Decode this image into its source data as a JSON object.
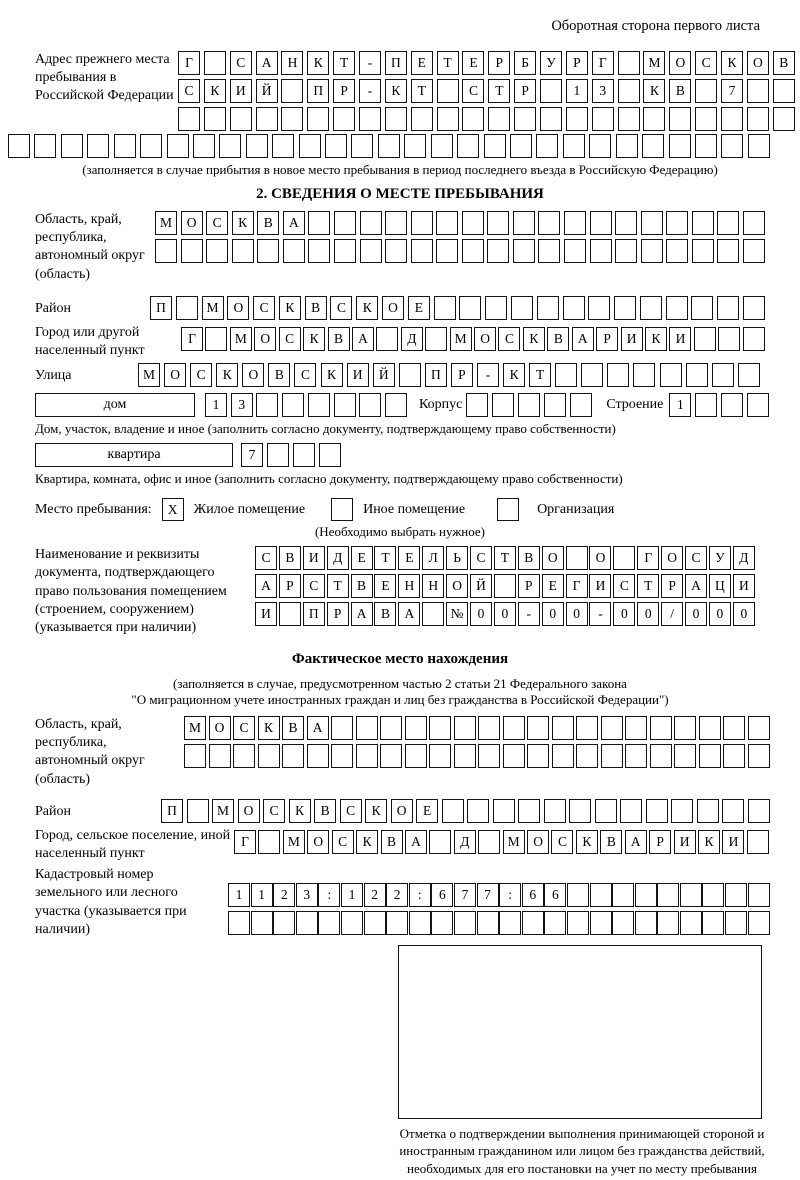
{
  "header": {
    "title": "Оборотная сторона первого листа"
  },
  "prev_address": {
    "label": "Адрес прежнего места пребывания в Российской Федерации",
    "rows": [
      "Г САНКТ-ПЕТЕРБУРГ МОСКОВ",
      "СКИЙ ПР-КТ СТР 13 КВ 7",
      ""
    ],
    "full_row": "",
    "note": "(заполняется в случае прибытия в новое место пребывания в период последнего въезда в Российскую Федерацию)"
  },
  "section2": {
    "heading": "2. СВЕДЕНИЯ О МЕСТЕ ПРЕБЫВАНИЯ",
    "region": {
      "label": "Область, край, республика, автономный округ (область)",
      "rows": [
        "МОСКВА",
        ""
      ]
    },
    "district": {
      "label": "Район",
      "row": "П МОСКВСКОЕ"
    },
    "city": {
      "label": "Город или другой населенный пункт",
      "row": "Г МОСКВА Д МОСКВАРИКИ"
    },
    "street": {
      "label": "Улица",
      "row": "МОСКОВСКИЙ ПР-КТ"
    },
    "house": {
      "box_label": "дом",
      "cells": "13",
      "korpus_label": "Корпус",
      "korpus_cells": "",
      "stroenie_label": "Строение",
      "stroenie_cells": "1"
    },
    "house_note": "Дом, участок, владение и иное (заполнить согласно документу, подтверждающему право собственности)",
    "apartment": {
      "box_label": "квартира",
      "cells": "7"
    },
    "apartment_note": "Квартира, комната, офис и иное (заполнить согласно документу, подтверждающему право собственности)",
    "stay_type": {
      "label": "Место пребывания:",
      "options": [
        {
          "label": "Жилое помещение",
          "mark": "X"
        },
        {
          "label": "Иное помещение",
          "mark": ""
        },
        {
          "label": "Организация",
          "mark": ""
        }
      ],
      "note": "(Необходимо выбрать нужное)"
    },
    "document": {
      "label": "Наименование и реквизиты документа, подтверждающего право пользования помещением (строением, сооружением) (указывается при наличии)",
      "rows": [
        "СВИДЕТЕЛЬСТВО О ГОСУД",
        "АРСТВЕННОЙ РЕГИСТРАЦИ",
        "И ПРАВА №00-00-00/000"
      ]
    }
  },
  "actual_location": {
    "heading": "Фактическое место нахождения",
    "note_line1": "(заполняется в случае, предусмотренном частью 2 статьи 21 Федерального закона",
    "note_line2": "\"О миграционном учете иностранных граждан и лиц без гражданства в Российской Федерации\")",
    "region": {
      "label": "Область, край, республика, автономный округ (область)",
      "rows": [
        "МОСКВА",
        ""
      ]
    },
    "district": {
      "label": "Район",
      "row": "П МОСКВСКОЕ"
    },
    "city": {
      "label": "Город, сельское поселение, иной населенный пункт",
      "row": "Г МОСКВА Д МОСКВАРИКИ"
    },
    "cadastral": {
      "label": "Кадастровый номер земельного или лесного участка (указывается при наличии)",
      "rows": [
        "1123:122:677:66",
        ""
      ]
    }
  },
  "stamp": {
    "caption": "Отметка о подтверждении выполнения принимающей стороной и иностранным гражданином или лицом без гражданства действий, необходимых для его постановки на учет по месту пребывания"
  }
}
